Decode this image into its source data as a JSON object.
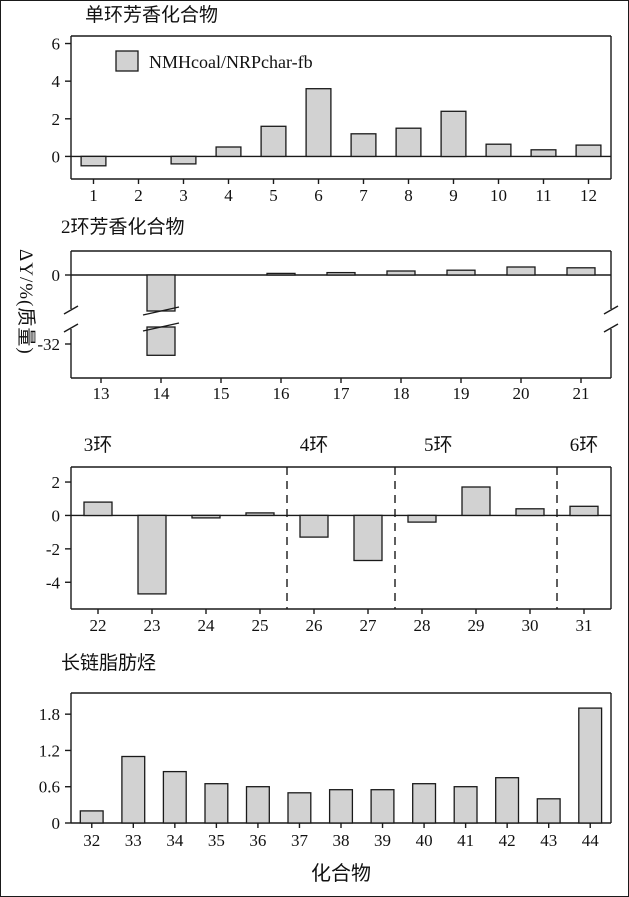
{
  "figure": {
    "ylabel": "ΔY/%(质量)",
    "xlabel": "化合物"
  },
  "style": {
    "bar_fill": "#d2d2d2",
    "bar_stroke": "#1a1a1a",
    "axis_color": "#1a1a1a"
  },
  "chart_data": [
    {
      "type": "bar",
      "title": "单环芳香化合物",
      "legend": "NMHcoal/NRPchar-fb",
      "categories": [
        1,
        2,
        3,
        4,
        5,
        6,
        7,
        8,
        9,
        10,
        11,
        12
      ],
      "values": [
        -0.5,
        0,
        -0.4,
        0.5,
        1.6,
        3.6,
        1.2,
        1.5,
        2.4,
        0.65,
        0.35,
        0.6
      ],
      "ylim": [
        -1.2,
        6.4
      ],
      "yticks": [
        0,
        2,
        4,
        6
      ],
      "grid": false,
      "legend_position": "upper-left-inside"
    },
    {
      "type": "bar",
      "title": "2环芳香化合物",
      "categories": [
        13,
        14,
        15,
        16,
        17,
        18,
        19,
        20,
        21
      ],
      "values": [
        0,
        -33,
        0,
        0.2,
        0.3,
        0.5,
        0.6,
        1.0,
        0.9
      ],
      "broken_axis": {
        "top_range": [
          -4.5,
          3
        ],
        "bottom_range": [
          -30.5,
          -35
        ],
        "yticks_top": [
          0
        ],
        "yticks_bottom": [
          -32
        ]
      },
      "grid": false
    },
    {
      "type": "bar",
      "section_labels": [
        "3环",
        "4环",
        "5环",
        "6环"
      ],
      "section_label_positions": [
        22,
        26,
        28.3,
        31
      ],
      "section_separators": [
        25.5,
        27.5,
        30.5
      ],
      "categories": [
        22,
        23,
        24,
        25,
        26,
        27,
        28,
        29,
        30,
        31
      ],
      "values": [
        0.8,
        -4.7,
        -0.15,
        0.15,
        -1.3,
        -2.7,
        -0.4,
        1.7,
        0.4,
        0.55
      ],
      "ylim": [
        -5.6,
        2.9
      ],
      "yticks": [
        2,
        0,
        -2,
        -4
      ],
      "grid": false
    },
    {
      "type": "bar",
      "title": "长链脂肪烃",
      "categories": [
        32,
        33,
        34,
        35,
        36,
        37,
        38,
        39,
        40,
        41,
        42,
        43,
        44
      ],
      "values": [
        0.2,
        1.1,
        0.85,
        0.65,
        0.6,
        0.5,
        0.55,
        0.55,
        0.65,
        0.6,
        0.75,
        0.4,
        1.9
      ],
      "ylim": [
        0,
        2.15
      ],
      "yticks": [
        0,
        0.6,
        1.2,
        1.8
      ],
      "grid": false
    }
  ]
}
